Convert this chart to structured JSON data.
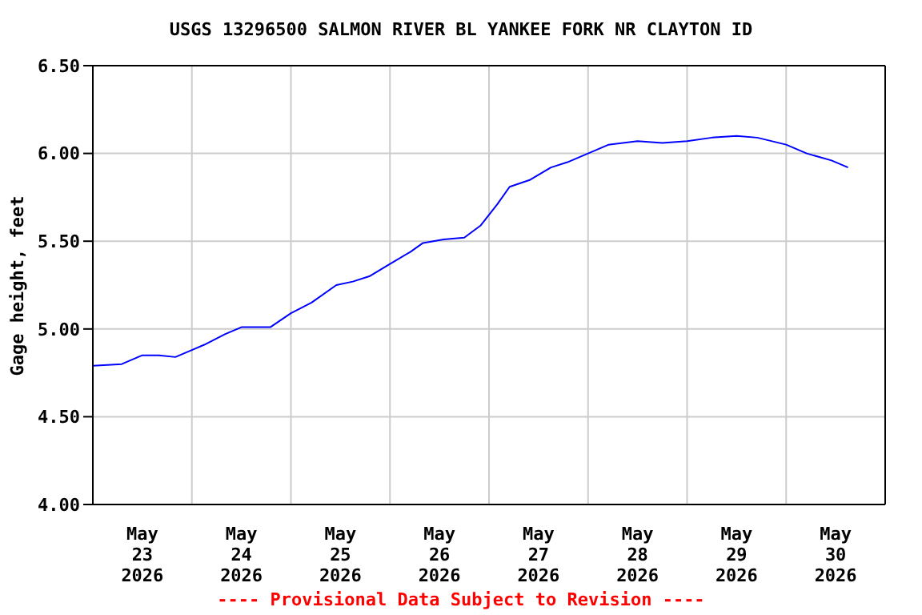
{
  "chart_data": {
    "type": "line",
    "title": "USGS 13296500 SALMON RIVER BL YANKEE FORK NR CLAYTON ID",
    "ylabel": "Gage height, feet",
    "annotations": [
      "---- Provisional Data Subject to Revision ----"
    ],
    "x": [
      "2026-05-23T00:00",
      "2026-05-23T07:00",
      "2026-05-23T12:00",
      "2026-05-23T16:00",
      "2026-05-23T20:00",
      "2026-05-24T00:00",
      "2026-05-24T03:00",
      "2026-05-24T08:00",
      "2026-05-24T12:00",
      "2026-05-24T16:00",
      "2026-05-24T19:00",
      "2026-05-25T00:00",
      "2026-05-25T05:00",
      "2026-05-25T11:00",
      "2026-05-25T15:00",
      "2026-05-25T19:00",
      "2026-05-26T00:00",
      "2026-05-26T05:00",
      "2026-05-26T08:00",
      "2026-05-26T13:00",
      "2026-05-26T18:00",
      "2026-05-26T22:00",
      "2026-05-27T02:00",
      "2026-05-27T05:00",
      "2026-05-27T10:00",
      "2026-05-27T15:00",
      "2026-05-27T19:00",
      "2026-05-28T00:00",
      "2026-05-28T05:00",
      "2026-05-28T12:00",
      "2026-05-28T18:00",
      "2026-05-29T00:00",
      "2026-05-29T06:00",
      "2026-05-29T12:00",
      "2026-05-29T17:00",
      "2026-05-30T00:00",
      "2026-05-30T05:00",
      "2026-05-30T11:00",
      "2026-05-30T15:00"
    ],
    "series": [
      {
        "color": "#0000ff",
        "values": [
          4.79,
          4.8,
          4.85,
          4.85,
          4.84,
          4.88,
          4.91,
          4.97,
          5.01,
          5.01,
          5.01,
          5.09,
          5.15,
          5.25,
          5.27,
          5.3,
          5.37,
          5.44,
          5.49,
          5.51,
          5.52,
          5.59,
          5.71,
          5.81,
          5.85,
          5.92,
          5.95,
          6.0,
          6.05,
          6.07,
          6.06,
          6.07,
          6.09,
          6.1,
          6.09,
          6.05,
          6.0,
          5.96,
          5.92
        ]
      }
    ],
    "xlim": [
      "2026-05-23T00:00",
      "2026-05-31T00:00"
    ],
    "xticks": [
      {
        "value": "2026-05-23T12:00",
        "label": "May\n23\n2026"
      },
      {
        "value": "2026-05-24T12:00",
        "label": "May\n24\n2026"
      },
      {
        "value": "2026-05-25T12:00",
        "label": "May\n25\n2026"
      },
      {
        "value": "2026-05-26T12:00",
        "label": "May\n26\n2026"
      },
      {
        "value": "2026-05-27T12:00",
        "label": "May\n27\n2026"
      },
      {
        "value": "2026-05-28T12:00",
        "label": "May\n28\n2026"
      },
      {
        "value": "2026-05-29T12:00",
        "label": "May\n29\n2026"
      },
      {
        "value": "2026-05-30T12:00",
        "label": "May\n30\n2026"
      },
      {
        "value": "2026-05-24T00:00",
        "label": null
      },
      {
        "value": "2026-05-25T00:00",
        "label": null
      },
      {
        "value": "2026-05-26T00:00",
        "label": null
      },
      {
        "value": "2026-05-27T00:00",
        "label": null
      },
      {
        "value": "2026-05-28T00:00",
        "label": null
      },
      {
        "value": "2026-05-29T00:00",
        "label": null
      },
      {
        "value": "2026-05-30T00:00",
        "label": null
      }
    ],
    "ylim": [
      4.0,
      6.5
    ],
    "yticks": [
      {
        "value": 4.0,
        "label": "4.00"
      },
      {
        "value": 4.5,
        "label": "4.50"
      },
      {
        "value": 5.0,
        "label": "5.00"
      },
      {
        "value": 5.5,
        "label": "5.50"
      },
      {
        "value": 6.0,
        "label": "6.00"
      },
      {
        "value": 6.5,
        "label": "6.50"
      }
    ],
    "grid": true,
    "legend": false,
    "marker": "none",
    "line_style": "solid"
  }
}
